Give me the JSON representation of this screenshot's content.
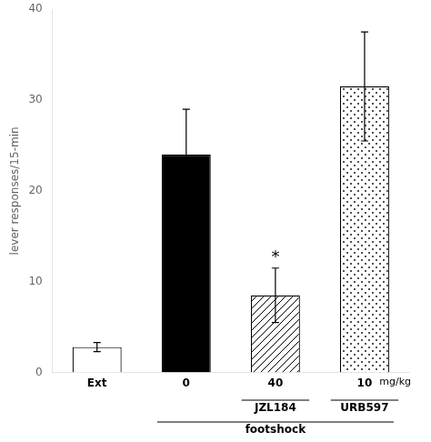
{
  "chart_data": {
    "type": "bar",
    "categories": [
      "Ext",
      "0",
      "40",
      "10"
    ],
    "values": [
      2.8,
      24.0,
      8.5,
      31.5
    ],
    "errors": [
      0.5,
      5.0,
      3.0,
      6.0
    ],
    "colors": [
      "white",
      "black",
      "white",
      "white"
    ],
    "ylabel": "lever responses/15-min",
    "ylim": [
      0,
      40
    ],
    "yticks": [
      0,
      10,
      20,
      30,
      40
    ],
    "grid": false,
    "annotations": [
      {
        "text": "*",
        "category": "40"
      }
    ],
    "x_unit": "mg/kg",
    "group_labels": [
      {
        "text": "JZL184",
        "categories": [
          "40"
        ]
      },
      {
        "text": "URB597",
        "categories": [
          "10"
        ]
      },
      {
        "text": "footshock",
        "categories": [
          "0",
          "40",
          "10"
        ]
      }
    ]
  }
}
